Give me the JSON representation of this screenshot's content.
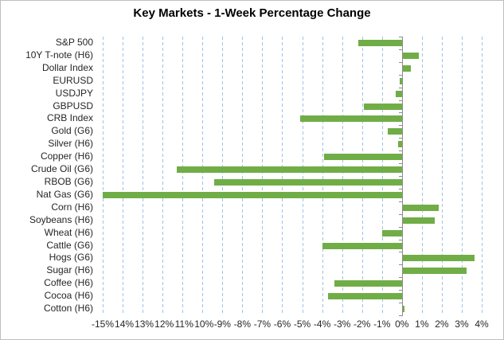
{
  "chart_data": {
    "type": "bar",
    "orientation": "horizontal",
    "title": "Key Markets - 1-Week Percentage Change",
    "categories": [
      "S&P 500",
      "10Y T-note (H6)",
      "Dollar Index",
      "EURUSD",
      "USDJPY",
      "GBPUSD",
      "CRB Index",
      "Gold (G6)",
      "Silver (H6)",
      "Copper (H6)",
      "Crude Oil (G6)",
      "RBOB (G6)",
      "Nat Gas (G6)",
      "Corn (H6)",
      "Soybeans (H6)",
      "Wheat (H6)",
      "Cattle (G6)",
      "Hogs (G6)",
      "Sugar (H6)",
      "Coffee (H6)",
      "Cocoa (H6)",
      "Cotton (H6)"
    ],
    "values": [
      -2.2,
      0.8,
      0.4,
      -0.1,
      -0.3,
      -1.9,
      -5.1,
      -0.7,
      -0.2,
      -3.9,
      -11.3,
      -9.4,
      -15.0,
      1.8,
      1.6,
      -1.0,
      -4.0,
      3.6,
      3.2,
      -3.4,
      -3.7,
      0.1
    ],
    "unit": "%",
    "xlabel": "",
    "ylabel": "",
    "xlim": [
      -15,
      4
    ],
    "x_tick_step": 1,
    "x_tick_labels": [
      "-15%",
      "-14%",
      "-13%",
      "-12%",
      "-11%",
      "-10%",
      "-9%",
      "-8%",
      "-7%",
      "-6%",
      "-5%",
      "-4%",
      "-3%",
      "-2%",
      "-1%",
      "0%",
      "1%",
      "2%",
      "3%",
      "4%"
    ],
    "grid": "vertical-dashed-gridlines-on",
    "legend": "none",
    "bar_color": "#70AD47",
    "gridline_color": "#9DC3E6",
    "axis_color": "#8C8C8C",
    "text_color": "#262626",
    "background_color": "#FFFFFF"
  }
}
